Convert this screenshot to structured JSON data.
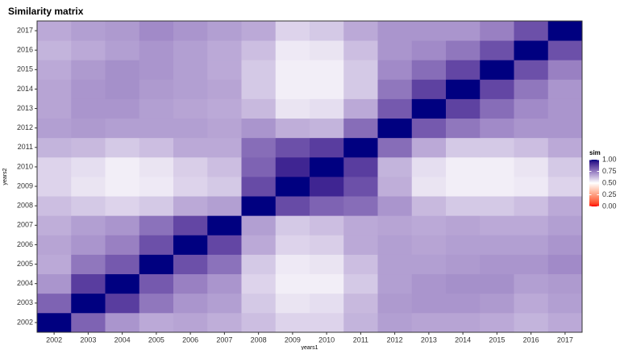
{
  "chart_data": {
    "type": "heatmap",
    "title": "Similarity matrix",
    "x_label": "years1",
    "y_label": "years2",
    "x": [
      "2002",
      "2003",
      "2004",
      "2005",
      "2006",
      "2007",
      "2008",
      "2009",
      "2010",
      "2011",
      "2012",
      "2013",
      "2014",
      "2015",
      "2016",
      "2017"
    ],
    "y": [
      "2002",
      "2003",
      "2004",
      "2005",
      "2006",
      "2007",
      "2008",
      "2009",
      "2010",
      "2011",
      "2012",
      "2013",
      "2014",
      "2015",
      "2016",
      "2017"
    ],
    "values": [
      [
        1,
        0.8,
        0.7,
        0.66,
        0.67,
        0.65,
        0.62,
        0.58,
        0.58,
        0.64,
        0.68,
        0.67,
        0.67,
        0.66,
        0.64,
        0.66
      ],
      [
        0.8,
        1,
        0.88,
        0.76,
        0.7,
        0.68,
        0.6,
        0.55,
        0.56,
        0.63,
        0.69,
        0.7,
        0.7,
        0.69,
        0.66,
        0.68
      ],
      [
        0.7,
        0.88,
        1,
        0.82,
        0.74,
        0.7,
        0.58,
        0.53,
        0.53,
        0.6,
        0.68,
        0.7,
        0.71,
        0.71,
        0.68,
        0.69
      ],
      [
        0.66,
        0.76,
        0.82,
        1,
        0.84,
        0.77,
        0.6,
        0.54,
        0.55,
        0.62,
        0.68,
        0.68,
        0.69,
        0.7,
        0.7,
        0.72
      ],
      [
        0.67,
        0.7,
        0.74,
        0.84,
        1,
        0.86,
        0.66,
        0.58,
        0.59,
        0.66,
        0.68,
        0.67,
        0.68,
        0.68,
        0.68,
        0.7
      ],
      [
        0.65,
        0.68,
        0.7,
        0.77,
        0.86,
        1,
        0.68,
        0.6,
        0.62,
        0.66,
        0.67,
        0.66,
        0.67,
        0.66,
        0.66,
        0.68
      ],
      [
        0.62,
        0.6,
        0.58,
        0.6,
        0.66,
        0.68,
        1,
        0.85,
        0.8,
        0.78,
        0.7,
        0.63,
        0.6,
        0.6,
        0.62,
        0.66
      ],
      [
        0.58,
        0.55,
        0.53,
        0.54,
        0.58,
        0.6,
        0.85,
        1,
        0.93,
        0.84,
        0.65,
        0.55,
        0.53,
        0.53,
        0.54,
        0.58
      ],
      [
        0.58,
        0.56,
        0.53,
        0.55,
        0.59,
        0.62,
        0.8,
        0.93,
        1,
        0.88,
        0.64,
        0.56,
        0.53,
        0.53,
        0.55,
        0.6
      ],
      [
        0.64,
        0.63,
        0.6,
        0.62,
        0.66,
        0.66,
        0.78,
        0.84,
        0.88,
        1,
        0.78,
        0.66,
        0.6,
        0.6,
        0.62,
        0.66
      ],
      [
        0.68,
        0.69,
        0.68,
        0.68,
        0.68,
        0.67,
        0.7,
        0.65,
        0.64,
        0.78,
        1,
        0.82,
        0.76,
        0.72,
        0.7,
        0.7
      ],
      [
        0.67,
        0.7,
        0.7,
        0.68,
        0.67,
        0.66,
        0.63,
        0.55,
        0.56,
        0.66,
        0.82,
        1,
        0.87,
        0.78,
        0.72,
        0.7
      ],
      [
        0.67,
        0.7,
        0.71,
        0.69,
        0.68,
        0.67,
        0.6,
        0.53,
        0.53,
        0.6,
        0.76,
        0.87,
        1,
        0.86,
        0.76,
        0.7
      ],
      [
        0.66,
        0.69,
        0.71,
        0.7,
        0.68,
        0.66,
        0.6,
        0.53,
        0.53,
        0.6,
        0.72,
        0.78,
        0.86,
        1,
        0.84,
        0.74
      ],
      [
        0.64,
        0.66,
        0.68,
        0.7,
        0.68,
        0.66,
        0.62,
        0.54,
        0.55,
        0.62,
        0.7,
        0.72,
        0.76,
        0.84,
        1,
        0.84
      ],
      [
        0.66,
        0.68,
        0.69,
        0.72,
        0.7,
        0.68,
        0.66,
        0.58,
        0.6,
        0.66,
        0.7,
        0.7,
        0.7,
        0.74,
        0.84,
        1
      ]
    ],
    "legend_title": "sim",
    "color_scale": {
      "low": "#ff0000",
      "mid": "#ffffff",
      "high": "#000080",
      "midpoint": 0.5,
      "limits": [
        0,
        1
      ]
    },
    "legend_ticks": [
      {
        "value": 1,
        "label": "1.00"
      },
      {
        "value": 0.75,
        "label": "0.75"
      },
      {
        "value": 0.5,
        "label": "0.50"
      },
      {
        "value": 0.25,
        "label": "0.25"
      },
      {
        "value": 0,
        "label": "0.00"
      }
    ]
  }
}
